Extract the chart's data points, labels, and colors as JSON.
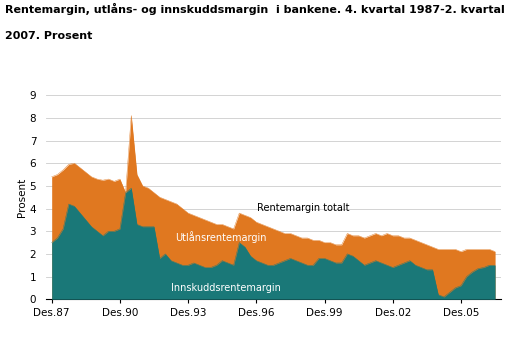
{
  "title_line1": "Rentemargin, utlåns- og innskuddsmargin  i bankene. 4. kvartal 1987-2. kvartal",
  "title_line2": "2007. Prosent",
  "ylabel": "Prosent",
  "xtick_labels": [
    "Des.87",
    "Des.90",
    "Des.93",
    "Des.96",
    "Des.99",
    "Des.02",
    "Des.05"
  ],
  "xtick_years": [
    1987,
    1990,
    1993,
    1996,
    1999,
    2002,
    2005
  ],
  "ylim": [
    0,
    9
  ],
  "color_total": "#E07820",
  "color_utlaan": "#1A7878",
  "label_total": "Rentemargin totalt",
  "rentemargin_totalt": [
    5.4,
    5.5,
    5.7,
    5.95,
    6.0,
    5.8,
    5.6,
    5.4,
    5.3,
    5.25,
    5.3,
    5.2,
    5.3,
    4.7,
    8.1,
    5.5,
    5.0,
    4.9,
    4.7,
    4.5,
    4.4,
    4.3,
    4.2,
    4.0,
    3.8,
    3.7,
    3.6,
    3.5,
    3.4,
    3.3,
    3.3,
    3.2,
    3.1,
    3.8,
    3.7,
    3.6,
    3.4,
    3.3,
    3.2,
    3.1,
    3.0,
    2.9,
    2.9,
    2.8,
    2.7,
    2.7,
    2.6,
    2.6,
    2.5,
    2.5,
    2.4,
    2.4,
    2.9,
    2.8,
    2.8,
    2.7,
    2.8,
    2.9,
    2.8,
    2.9,
    2.8,
    2.8,
    2.7,
    2.7,
    2.6,
    2.5,
    2.4,
    2.3,
    2.2,
    2.2,
    2.2,
    2.2,
    2.1,
    2.2,
    2.2,
    2.2,
    2.2,
    2.2,
    2.1
  ],
  "utlaan_margin": [
    2.5,
    2.7,
    3.1,
    4.2,
    4.1,
    3.8,
    3.5,
    3.2,
    3.0,
    2.8,
    3.0,
    3.0,
    3.1,
    4.7,
    4.9,
    3.3,
    3.2,
    3.2,
    3.2,
    1.8,
    2.0,
    1.7,
    1.6,
    1.5,
    1.5,
    1.6,
    1.5,
    1.4,
    1.4,
    1.5,
    1.7,
    1.6,
    1.5,
    2.5,
    2.3,
    1.9,
    1.7,
    1.6,
    1.5,
    1.5,
    1.6,
    1.7,
    1.8,
    1.7,
    1.6,
    1.5,
    1.5,
    1.8,
    1.8,
    1.7,
    1.6,
    1.6,
    2.0,
    1.9,
    1.7,
    1.5,
    1.6,
    1.7,
    1.6,
    1.5,
    1.4,
    1.5,
    1.6,
    1.7,
    1.5,
    1.4,
    1.3,
    1.3,
    0.2,
    0.1,
    0.3,
    0.5,
    0.6,
    1.0,
    1.2,
    1.35,
    1.4,
    1.5,
    1.5
  ]
}
